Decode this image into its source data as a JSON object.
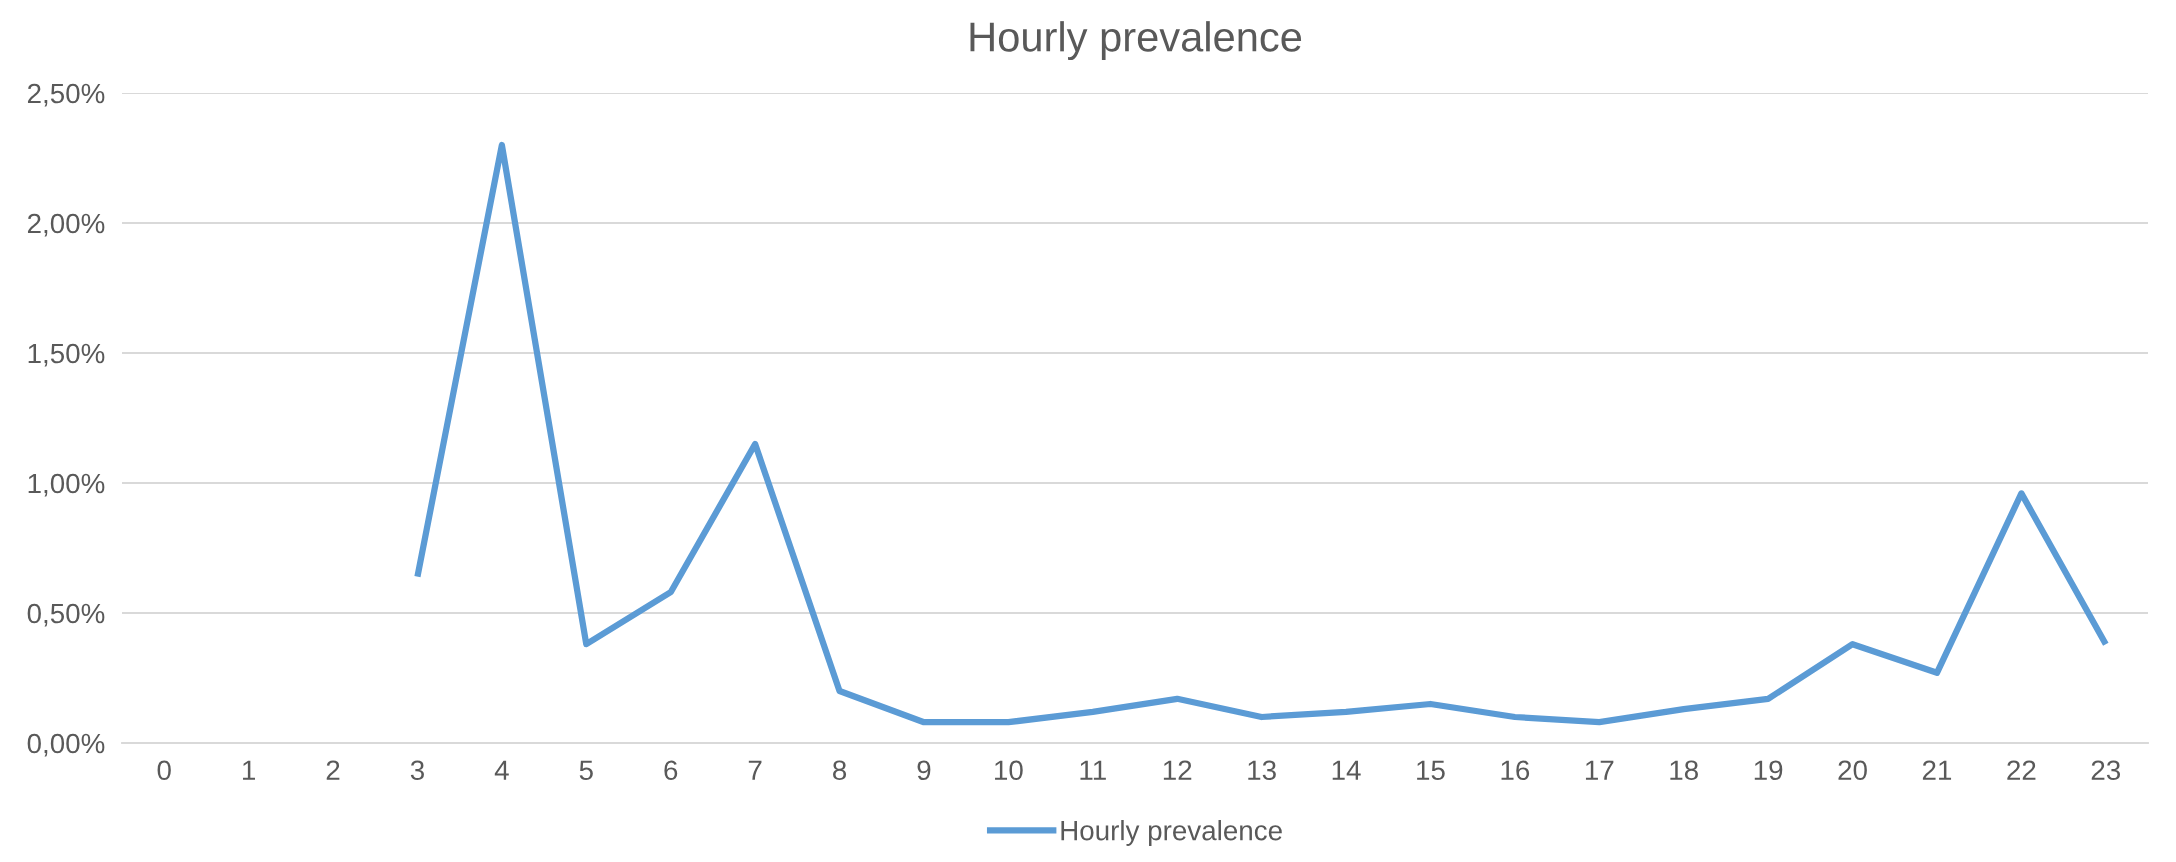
{
  "chart_data": {
    "type": "line",
    "title": "Hourly prevalence",
    "categories": [
      "0",
      "1",
      "2",
      "3",
      "4",
      "5",
      "6",
      "7",
      "8",
      "9",
      "10",
      "11",
      "12",
      "13",
      "14",
      "15",
      "16",
      "17",
      "18",
      "19",
      "20",
      "21",
      "22",
      "23"
    ],
    "series": [
      {
        "name": "Hourly prevalence",
        "color": "#5b9bd5",
        "values": [
          null,
          null,
          null,
          0.64,
          2.3,
          0.38,
          0.58,
          1.15,
          0.2,
          0.08,
          0.08,
          0.12,
          0.17,
          0.1,
          0.12,
          0.15,
          0.1,
          0.08,
          0.13,
          0.17,
          0.38,
          0.27,
          0.96,
          0.38
        ]
      }
    ],
    "ylim": [
      0,
      2.5
    ],
    "yticks": [
      {
        "value": 0,
        "label": "0,00%"
      },
      {
        "value": 0.5,
        "label": "0,50%"
      },
      {
        "value": 1,
        "label": "1,00%"
      },
      {
        "value": 1.5,
        "label": "1,50%"
      },
      {
        "value": 2,
        "label": "2,00%"
      },
      {
        "value": 2.5,
        "label": "2,50%"
      }
    ],
    "grid": "y",
    "legend": "bottom",
    "marker": "none",
    "line_style": "solid"
  }
}
